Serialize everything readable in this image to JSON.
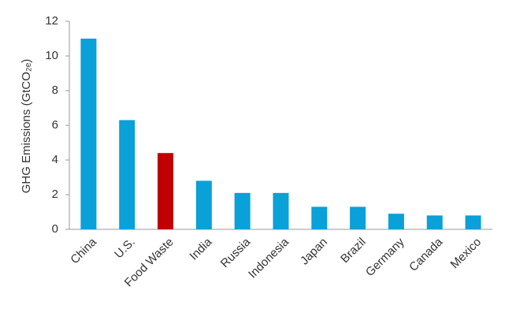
{
  "chart_data": {
    "type": "bar",
    "y_label": "GHG Emissions (GtCO₂ₑ)",
    "categories": [
      "China",
      "U.S.",
      "Food Waste",
      "India",
      "Russia",
      "Indonesia",
      "Japan",
      "Brazil",
      "Germany",
      "Canada",
      "Mexico"
    ],
    "values": [
      11.0,
      6.3,
      4.4,
      2.8,
      2.1,
      2.1,
      1.3,
      1.3,
      0.9,
      0.8,
      0.8
    ],
    "colors": [
      "#0aa0d8",
      "#0aa0d8",
      "#c00000",
      "#0aa0d8",
      "#0aa0d8",
      "#0aa0d8",
      "#0aa0d8",
      "#0aa0d8",
      "#0aa0d8",
      "#0aa0d8",
      "#0aa0d8"
    ],
    "ylim": [
      0,
      12
    ],
    "yticks": [
      0,
      2,
      4,
      6,
      8,
      10,
      12
    ],
    "grid": false
  }
}
